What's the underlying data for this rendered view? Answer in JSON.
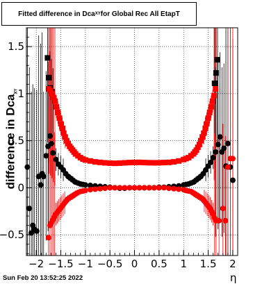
{
  "title": {
    "main": "Fitted difference in Dca",
    "sub": "XY",
    "rest": " for Global Rec All EtapT"
  },
  "ylabel": {
    "main": "difference in Dca",
    "sub": "XY"
  },
  "xlabel": "η",
  "datestamp": "Sun Feb 20 13:52:25 2022",
  "colors": {
    "series_black": "#000000",
    "series_red": "#ff0000",
    "grid": "#000000"
  },
  "chart_data": {
    "type": "scatter",
    "xlim": [
      -2.2,
      2.1
    ],
    "ylim": [
      -0.72,
      1.7
    ],
    "xticks": [
      -2,
      -1.5,
      -1,
      -0.5,
      0,
      0.5,
      1,
      1.5,
      2
    ],
    "xtick_labels": [
      "−2",
      "−1.5",
      "−1",
      "−0.5",
      "0",
      "0.5",
      "1",
      "1.5",
      "2"
    ],
    "yticks": [
      -0.5,
      0,
      0.5,
      1,
      1.5
    ],
    "ytick_labels": [
      "−0.5",
      "0",
      "0.5",
      "1",
      "1.5"
    ],
    "grid": true,
    "series": [
      {
        "marker": "square",
        "color": "#000000",
        "x": [
          -1.77,
          -1.74,
          -1.71,
          -1.68
        ],
        "y": [
          1.38,
          1.17,
          1.06,
          1.02
        ]
      },
      {
        "marker": "square",
        "color": "#000000",
        "x": [
          1.63,
          1.66,
          1.69
        ],
        "y": [
          1.11,
          1.22,
          1.36
        ]
      },
      {
        "marker": "square",
        "color": "#ff0000",
        "x": [
          -1.74,
          -1.71,
          -1.68,
          -1.65,
          -1.62,
          -1.59,
          -1.56,
          -1.53,
          -1.5,
          -1.47,
          -1.44,
          -1.41,
          -1.38,
          -1.35,
          -1.32,
          -1.29,
          -1.26,
          -1.23,
          -1.2,
          -1.15,
          -1.1,
          -1.05,
          -1.0,
          -0.9,
          -0.8,
          -0.7,
          -0.6,
          -0.5,
          -0.4,
          -0.3,
          -0.2,
          -0.1,
          0.0,
          0.1,
          0.2,
          0.3,
          0.4,
          0.5,
          0.6,
          0.7,
          0.8,
          0.9,
          1.0,
          1.05,
          1.1,
          1.15,
          1.2,
          1.23,
          1.26,
          1.29,
          1.32,
          1.35,
          1.38,
          1.41,
          1.44,
          1.47,
          1.5,
          1.53,
          1.56,
          1.59,
          1.62,
          1.65
        ],
        "y": [
          1.05,
          1.03,
          1.0,
          0.96,
          0.92,
          0.86,
          0.8,
          0.74,
          0.68,
          0.63,
          0.58,
          0.54,
          0.5,
          0.47,
          0.44,
          0.42,
          0.4,
          0.38,
          0.36,
          0.34,
          0.32,
          0.305,
          0.295,
          0.285,
          0.275,
          0.27,
          0.265,
          0.262,
          0.26,
          0.262,
          0.265,
          0.268,
          0.27,
          0.27,
          0.268,
          0.266,
          0.265,
          0.266,
          0.268,
          0.27,
          0.275,
          0.285,
          0.3,
          0.31,
          0.32,
          0.34,
          0.36,
          0.38,
          0.4,
          0.43,
          0.46,
          0.5,
          0.54,
          0.58,
          0.63,
          0.68,
          0.74,
          0.8,
          0.86,
          0.92,
          0.98,
          1.05
        ]
      },
      {
        "marker": "circle",
        "color": "#000000",
        "x": [
          -2.18,
          -2.14,
          -2.1,
          -2.07,
          -2.04,
          -1.99,
          -1.95,
          -1.91,
          -1.88,
          -1.85,
          -1.8,
          -1.76,
          -1.72,
          -1.69,
          -1.66,
          -1.6,
          -1.55,
          -1.5,
          -1.45,
          -1.4,
          -1.35,
          -1.3,
          -1.25,
          -1.2,
          -1.15,
          -1.1,
          -1.05,
          -1.0,
          -0.9,
          -0.8,
          -0.7,
          -0.6,
          -0.5,
          -0.4,
          -0.3,
          -0.2,
          -0.1,
          0.0,
          0.1,
          0.2,
          0.3,
          0.4,
          0.5,
          0.6,
          0.7,
          0.8,
          0.9,
          1.0,
          1.05,
          1.1,
          1.15,
          1.2,
          1.25,
          1.3,
          1.35,
          1.4,
          1.45,
          1.5,
          1.55,
          1.6,
          1.65,
          1.7,
          1.74,
          1.78,
          1.82,
          1.86,
          1.9,
          1.95,
          2.0
        ],
        "y": [
          0.22,
          -0.22,
          -0.48,
          -0.4,
          -0.44,
          -0.46,
          0.12,
          0.03,
          0.15,
          0.12,
          0.34,
          0.44,
          0.55,
          0.47,
          0.37,
          0.3,
          0.25,
          0.22,
          0.19,
          0.15,
          0.12,
          0.1,
          0.08,
          0.06,
          0.05,
          0.04,
          0.035,
          0.03,
          0.025,
          0.02,
          0.015,
          0.01,
          0.005,
          0.0,
          -0.005,
          -0.005,
          0.0,
          0.0,
          0.0,
          0.0,
          0.0,
          0.0,
          0.005,
          0.005,
          0.01,
          0.015,
          0.02,
          0.03,
          0.035,
          0.04,
          0.05,
          0.06,
          0.08,
          0.1,
          0.12,
          0.15,
          0.19,
          0.23,
          0.27,
          0.32,
          0.38,
          0.46,
          0.54,
          0.38,
          0.42,
          0.23,
          0.47,
          0.22,
          0.08
        ]
      },
      {
        "marker": "circle",
        "color": "#ff0000",
        "x": [
          -1.75,
          -1.72,
          -1.69,
          -1.66,
          -1.63,
          -1.6,
          -1.57,
          -1.54,
          -1.51,
          -1.48,
          -1.45,
          -1.42,
          -1.39,
          -1.36,
          -1.33,
          -1.3,
          -1.27,
          -1.24,
          -1.21,
          -1.18,
          -1.15,
          -1.1,
          -1.05,
          -1.0,
          -0.9,
          -0.8,
          -0.7,
          -0.6,
          -0.5,
          -0.4,
          -0.3,
          -0.2,
          -0.1,
          0.0,
          0.1,
          0.2,
          0.3,
          0.4,
          0.5,
          0.6,
          0.7,
          0.8,
          0.9,
          1.0,
          1.05,
          1.1,
          1.15,
          1.18,
          1.21,
          1.24,
          1.27,
          1.3,
          1.33,
          1.36,
          1.39,
          1.42,
          1.45,
          1.48,
          1.51,
          1.54,
          1.57,
          1.6,
          1.63,
          1.66,
          1.72,
          1.8,
          1.85,
          1.9,
          1.95,
          2.0
        ],
        "y": [
          -0.53,
          -0.4,
          -0.37,
          -0.34,
          -0.31,
          -0.28,
          -0.26,
          -0.24,
          -0.22,
          -0.2,
          -0.18,
          -0.16,
          -0.14,
          -0.12,
          -0.11,
          -0.1,
          -0.09,
          -0.08,
          -0.07,
          -0.06,
          -0.05,
          -0.04,
          -0.035,
          -0.03,
          -0.02,
          -0.015,
          -0.01,
          -0.005,
          0.0,
          0.0,
          0.0,
          0.0,
          0.0,
          0.0,
          0.0,
          0.0,
          0.0,
          0.0,
          0.0,
          0.0,
          -0.005,
          -0.01,
          -0.015,
          -0.02,
          -0.03,
          -0.035,
          -0.04,
          -0.05,
          -0.06,
          -0.07,
          -0.08,
          -0.09,
          -0.1,
          -0.11,
          -0.12,
          -0.14,
          -0.16,
          -0.18,
          -0.2,
          -0.22,
          -0.25,
          -0.28,
          -0.32,
          -0.35,
          -0.35,
          -0.22,
          -0.35,
          0.22,
          0.31,
          0.31
        ]
      }
    ]
  }
}
